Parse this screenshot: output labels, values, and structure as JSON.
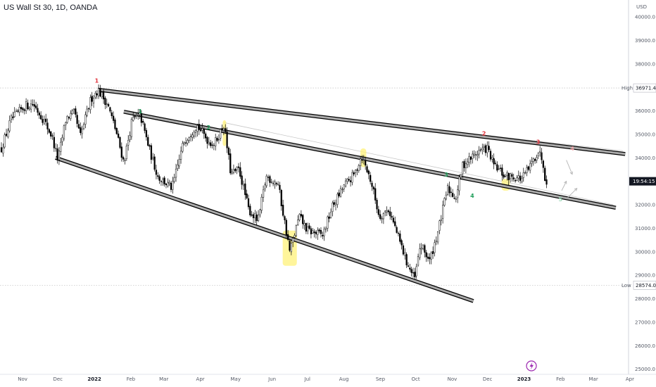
{
  "title": "US Wall St 30, 1D, OANDA",
  "currency": "USD",
  "high_label": "High",
  "high_value": "36971.4",
  "low_label": "Low",
  "low_value": "28574.0",
  "last_price_label": "19:54:15",
  "colors": {
    "up": "#ffffff",
    "down": "#000000",
    "wick": "#000000",
    "trendline_fill": "#aaaaaa",
    "highlight": "#fff27a",
    "red_label": "#e0323c",
    "green_label": "#1f9e5a",
    "grid": "#c8c8c8"
  },
  "icons": [
    "lightning-icon"
  ],
  "chart_data": {
    "type": "candlestick",
    "xlabel": "",
    "ylabel": "",
    "ylim": [
      24900,
      41300
    ],
    "y_ticks": [
      "40000.0",
      "39000.0",
      "38000.0",
      "37000.0",
      "36000.0",
      "35000.0",
      "34000.0",
      "33000.0",
      "32000.0",
      "31000.0",
      "30000.0",
      "29000.0",
      "28000.0",
      "27000.0",
      "26000.0",
      "25000.0"
    ],
    "x_ticks": [
      {
        "label": "Nov",
        "date": "2021-11-01"
      },
      {
        "label": "Dec",
        "date": "2021-12-01"
      },
      {
        "label": "2022",
        "date": "2022-01-01"
      },
      {
        "label": "Feb",
        "date": "2022-02-01"
      },
      {
        "label": "Mar",
        "date": "2022-03-01"
      },
      {
        "label": "Apr",
        "date": "2022-04-01"
      },
      {
        "label": "May",
        "date": "2022-05-01"
      },
      {
        "label": "Jun",
        "date": "2022-06-01"
      },
      {
        "label": "Jul",
        "date": "2022-07-01"
      },
      {
        "label": "Aug",
        "date": "2022-08-01"
      },
      {
        "label": "Sep",
        "date": "2022-09-01"
      },
      {
        "label": "Oct",
        "date": "2022-10-01"
      },
      {
        "label": "Nov",
        "date": "2022-11-01"
      },
      {
        "label": "Dec",
        "date": "2022-12-01"
      },
      {
        "label": "2023",
        "date": "2023-01-01"
      },
      {
        "label": "Feb",
        "date": "2023-02-01"
      },
      {
        "label": "Mar",
        "date": "2023-03-01"
      },
      {
        "label": "Apr",
        "date": "2023-04-01"
      }
    ],
    "price_path": [
      [
        "2021-10-14",
        34400
      ],
      [
        "2021-10-22",
        35600
      ],
      [
        "2021-11-03",
        36200
      ],
      [
        "2021-11-10",
        36300
      ],
      [
        "2021-11-19",
        35600
      ],
      [
        "2021-11-26",
        34900
      ],
      [
        "2021-12-01",
        33900
      ],
      [
        "2021-12-08",
        35700
      ],
      [
        "2021-12-15",
        35900
      ],
      [
        "2021-12-20",
        34900
      ],
      [
        "2021-12-29",
        36500
      ],
      [
        "2022-01-04",
        36900
      ],
      [
        "2022-01-12",
        36300
      ],
      [
        "2022-01-19",
        35200
      ],
      [
        "2022-01-26",
        33800
      ],
      [
        "2022-02-02",
        35600
      ],
      [
        "2022-02-09",
        35800
      ],
      [
        "2022-02-17",
        34300
      ],
      [
        "2022-02-24",
        33200
      ],
      [
        "2022-03-08",
        32700
      ],
      [
        "2022-03-18",
        34700
      ],
      [
        "2022-03-29",
        35400
      ],
      [
        "2022-04-08",
        34700
      ],
      [
        "2022-04-13",
        34600
      ],
      [
        "2022-04-21",
        35400
      ],
      [
        "2022-04-27",
        33300
      ],
      [
        "2022-05-04",
        33500
      ],
      [
        "2022-05-12",
        31800
      ],
      [
        "2022-05-20",
        31300
      ],
      [
        "2022-05-27",
        33200
      ],
      [
        "2022-06-06",
        32900
      ],
      [
        "2022-06-16",
        30000
      ],
      [
        "2022-06-24",
        31500
      ],
      [
        "2022-07-01",
        30900
      ],
      [
        "2022-07-14",
        30700
      ],
      [
        "2022-07-22",
        31900
      ],
      [
        "2022-08-01",
        32800
      ],
      [
        "2022-08-10",
        33300
      ],
      [
        "2022-08-16",
        34100
      ],
      [
        "2022-08-24",
        33000
      ],
      [
        "2022-08-31",
        31500
      ],
      [
        "2022-09-08",
        31800
      ],
      [
        "2022-09-13",
        31100
      ],
      [
        "2022-09-23",
        29600
      ],
      [
        "2022-09-30",
        28800
      ],
      [
        "2022-10-05",
        30300
      ],
      [
        "2022-10-13",
        29600
      ],
      [
        "2022-10-21",
        31100
      ],
      [
        "2022-10-28",
        32700
      ],
      [
        "2022-11-04",
        32300
      ],
      [
        "2022-11-10",
        33700
      ],
      [
        "2022-11-24",
        34300
      ],
      [
        "2022-12-01",
        34400
      ],
      [
        "2022-12-06",
        33700
      ],
      [
        "2022-12-16",
        33200
      ],
      [
        "2022-12-23",
        33200
      ],
      [
        "2022-12-30",
        33100
      ],
      [
        "2023-01-06",
        33600
      ],
      [
        "2023-01-13",
        34300
      ],
      [
        "2023-01-17",
        33900
      ],
      [
        "2023-01-19",
        33100
      ],
      [
        "2023-01-21",
        33000
      ]
    ],
    "last_price": 33000,
    "high_line": 36971.4,
    "low_line": 28574.0,
    "trendlines": [
      {
        "name": "upper-resistance",
        "from": [
          "2022-01-04",
          36900
        ],
        "to": [
          "2023-03-28",
          34160
        ]
      },
      {
        "name": "mid-channel",
        "from": [
          "2022-01-26",
          35960
        ],
        "to": [
          "2023-03-20",
          31870
        ]
      },
      {
        "name": "lower-support",
        "from": [
          "2021-11-29",
          34000
        ],
        "to": [
          "2022-11-19",
          27900
        ]
      }
    ],
    "projection_lines": [
      {
        "from": [
          "2022-04-21",
          35500
        ],
        "to": [
          "2023-03-18",
          32000
        ]
      },
      {
        "from": [
          "2022-12-01",
          34950
        ],
        "to": [
          "2023-03-26",
          34300
        ]
      }
    ],
    "projection_arrows": [
      {
        "from": [
          "2023-02-06",
          33900
        ],
        "to": [
          "2023-02-11",
          33300
        ]
      },
      {
        "from": [
          "2023-02-02",
          32600
        ],
        "to": [
          "2023-02-06",
          33000
        ]
      },
      {
        "from": [
          "2023-02-07",
          32300
        ],
        "to": [
          "2023-02-15",
          32700
        ]
      }
    ],
    "highlights": [
      {
        "from": [
          "2022-04-20",
          35600
        ],
        "to": [
          "2022-04-23",
          34500
        ]
      },
      {
        "from": [
          "2022-06-10",
          30900
        ],
        "to": [
          "2022-06-22",
          29400
        ]
      },
      {
        "from": [
          "2022-08-15",
          34400
        ],
        "to": [
          "2022-08-20",
          33600
        ]
      },
      {
        "from": [
          "2022-12-13",
          33100
        ],
        "to": [
          "2022-12-20",
          32600
        ]
      }
    ],
    "wave_labels": [
      {
        "text": "1",
        "date": "2022-01-03",
        "price": 37200,
        "color": "red"
      },
      {
        "text": "1",
        "date": "2022-02-09",
        "price": 35900,
        "color": "green"
      },
      {
        "text": "2",
        "date": "2022-04-08",
        "price": 35200,
        "color": "green"
      },
      {
        "text": "3",
        "date": "2022-10-27",
        "price": 33200,
        "color": "green"
      },
      {
        "text": "4",
        "date": "2022-11-18",
        "price": 32300,
        "color": "green"
      },
      {
        "text": "2",
        "date": "2022-11-28",
        "price": 34950,
        "color": "red"
      },
      {
        "text": "3",
        "date": "2023-01-13",
        "price": 34590,
        "color": "red"
      },
      {
        "text": "4",
        "date": "2023-02-11",
        "price": 34300,
        "color": "red-faded"
      },
      {
        "text": "5",
        "date": "2023-02-01",
        "price": 32150,
        "color": "green-faded"
      }
    ]
  }
}
